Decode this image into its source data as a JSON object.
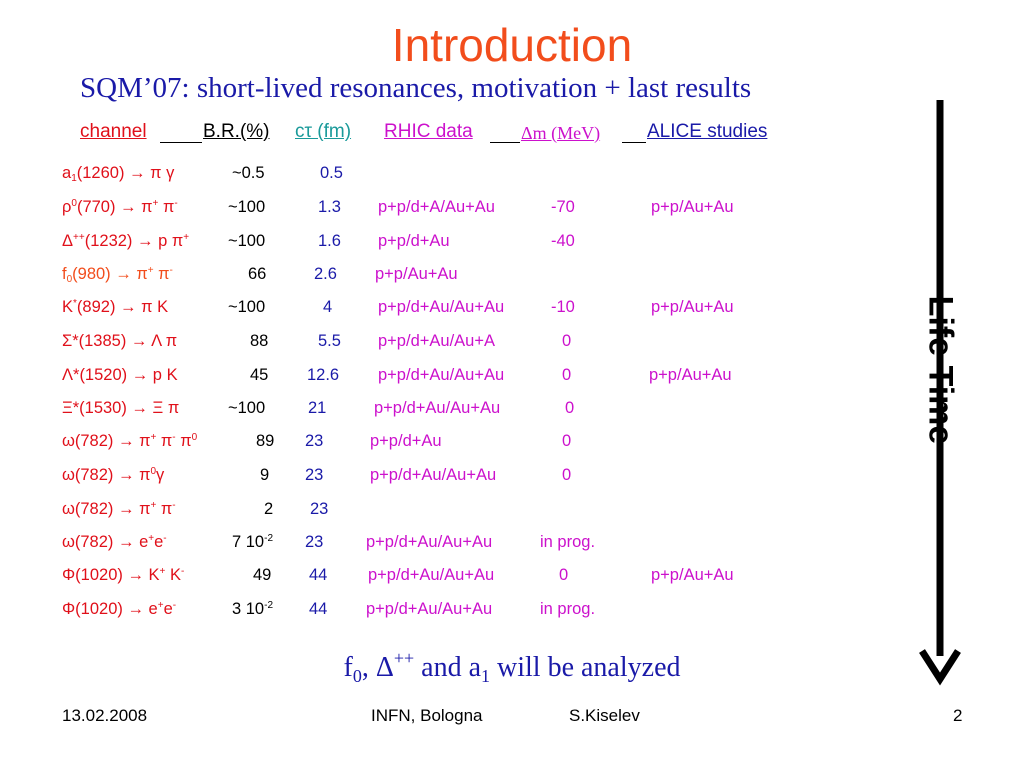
{
  "title": "Introduction",
  "subtitle": "SQM’07: short-lived resonances, motivation + last results",
  "header": {
    "channel": "channel",
    "br": "B.R.(%)",
    "ctau": "cτ (fm)",
    "rhic": "RHIC data",
    "dm": "Δm (MeV)",
    "alice": "ALICE studies"
  },
  "rows": [
    {
      "br": "~0.5",
      "ctau": "0.5",
      "rhic": "",
      "dm": "",
      "alice": ""
    },
    {
      "br": "~100",
      "ctau": "1.3",
      "rhic": "p+p/d+A/Au+Au",
      "dm": "-70",
      "alice": "p+p/Au+Au"
    },
    {
      "br": "~100",
      "ctau": "1.6",
      "rhic": "p+p/d+Au",
      "dm": "-40",
      "alice": ""
    },
    {
      "br": "66",
      "ctau": "2.6",
      "rhic": "p+p/Au+Au",
      "dm": "",
      "alice": ""
    },
    {
      "br": "~100",
      "ctau": "4",
      "rhic": "p+p/d+Au/Au+Au",
      "dm": "-10",
      "alice": "p+p/Au+Au"
    },
    {
      "br": "88",
      "ctau": "5.5",
      "rhic": "p+p/d+Au/Au+A",
      "dm": "0",
      "alice": ""
    },
    {
      "br": "45",
      "ctau": "12.6",
      "rhic": "p+p/d+Au/Au+Au",
      "dm": "0",
      "alice": "p+p/Au+Au"
    },
    {
      "br": "~100",
      "ctau": "21",
      "rhic": "p+p/d+Au/Au+Au",
      "dm": "0",
      "alice": ""
    },
    {
      "br": "89",
      "ctau": "23",
      "rhic": "p+p/d+Au",
      "dm": "0",
      "alice": ""
    },
    {
      "br": "9",
      "ctau": "23",
      "rhic": "p+p/d+Au/Au+Au",
      "dm": "0",
      "alice": ""
    },
    {
      "br": "2",
      "ctau": "23",
      "rhic": "",
      "dm": "",
      "alice": ""
    },
    {
      "br": "7 10",
      "br_exp": "-2",
      "ctau": "23",
      "rhic": "p+p/d+Au/Au+Au",
      "dm": "in prog.",
      "alice": ""
    },
    {
      "br": "49",
      "ctau": "44",
      "rhic": "p+p/d+Au/Au+Au",
      "dm": "0",
      "alice": "p+p/Au+Au"
    },
    {
      "br": "3 10",
      "br_exp": "-2",
      "ctau": "44",
      "rhic": "p+p/d+Au/Au+Au",
      "dm": "in prog.",
      "alice": ""
    }
  ],
  "conclusion": {
    "f": "f",
    "f_sub": "0",
    "comma": ", Δ",
    "delta_sup": "++",
    "and_a": " and a",
    "a_sub": "1",
    "rest": " will be analyzed"
  },
  "side_label": "Life Time",
  "footer": {
    "date": "13.02.2008",
    "venue": "INFN, Bologna",
    "author": "S.Kiselev",
    "page": "2"
  },
  "colors": {
    "title": "#f24d1c",
    "subtitle": "#1a1aa8",
    "channel": "#e0101a",
    "br": "#000000",
    "ctau": "#1a1aa8",
    "rhic": "#cc11cc",
    "alice": "#cc11cc"
  }
}
